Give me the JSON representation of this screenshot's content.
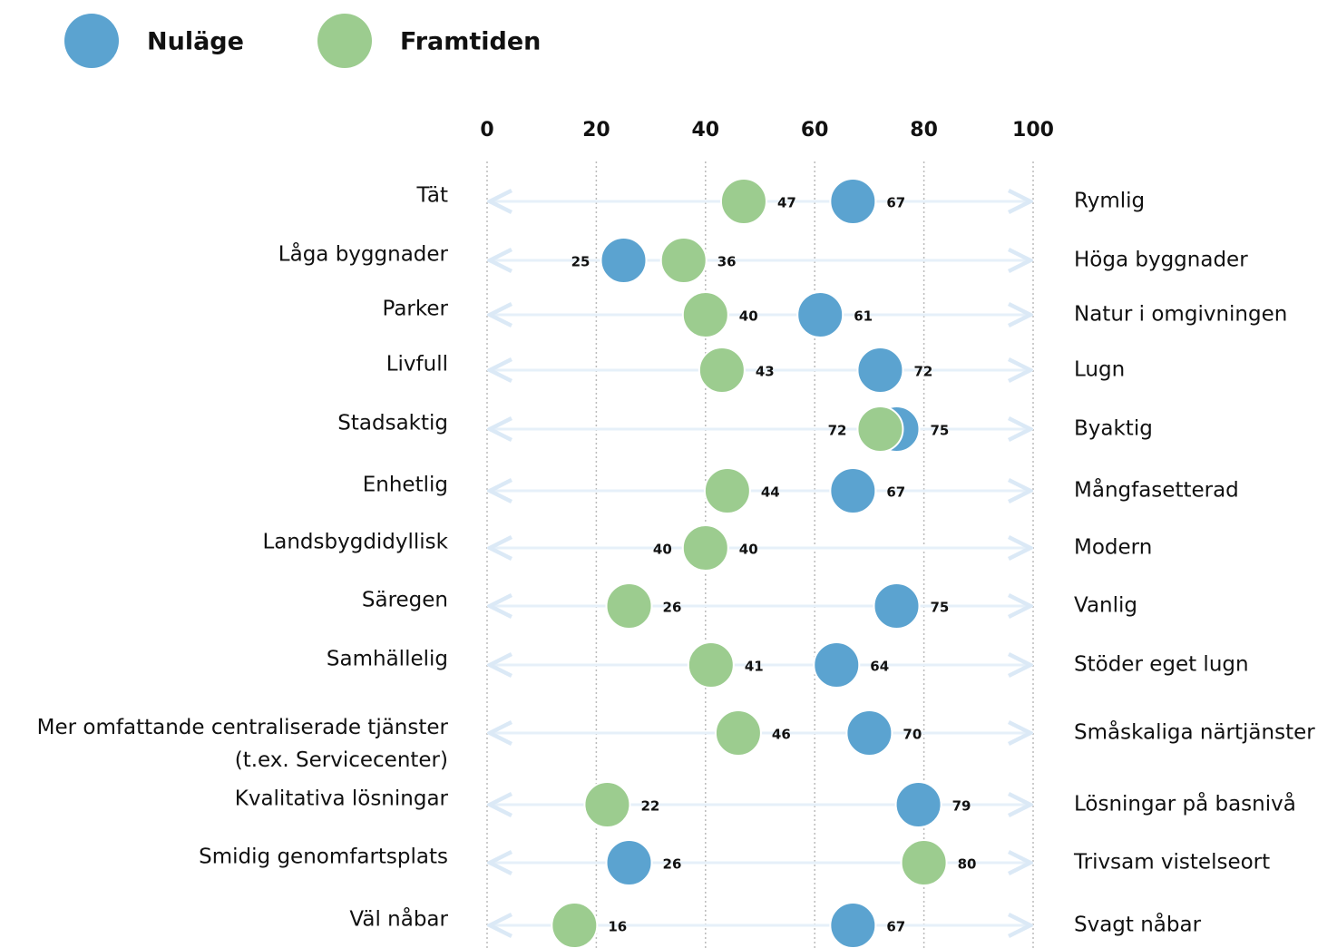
{
  "chart_data": {
    "type": "dot",
    "categories": [
      "Tät",
      "Låga byggnader",
      "Parker",
      "Livfull",
      "Stadsaktig",
      "Enhetlig",
      "Landsbygdidyllisk",
      "Säregen",
      "Samhällelig",
      "Mer omfattande centraliserade tjänster\n(t.ex. Servicecenter)",
      "Kvalitativa lösningar",
      "Smidig genomfartsplats",
      "Väl nåbar"
    ],
    "right_labels": [
      "Rymlig",
      "Höga byggnader",
      "Natur i omgivningen",
      "Lugn",
      "Byaktig",
      "Mångfasetterad",
      "Modern",
      "Vanlig",
      "Stöder eget lugn",
      "Småskaliga närtjänster",
      "Lösningar på basnivå",
      "Trivsam vistelseort",
      "Svagt nåbar"
    ],
    "series": [
      {
        "name": "Nuläge",
        "color": "#5ba3d0",
        "values": [
          67,
          25,
          61,
          72,
          75,
          67,
          40,
          75,
          64,
          70,
          79,
          26,
          67
        ]
      },
      {
        "name": "Framtiden",
        "color": "#9ccc8f",
        "values": [
          47,
          36,
          40,
          43,
          72,
          44,
          40,
          26,
          41,
          46,
          22,
          80,
          16
        ]
      }
    ],
    "xlim": [
      0,
      100
    ],
    "xticks": [
      0,
      20,
      40,
      60,
      80,
      100
    ],
    "grid": true
  }
}
